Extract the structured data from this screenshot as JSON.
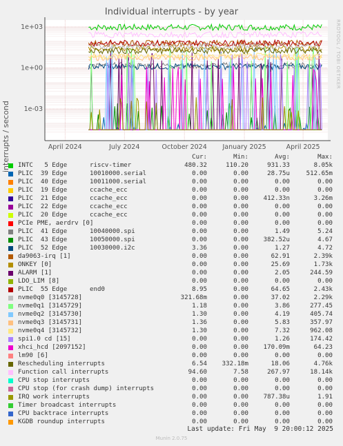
{
  "chart_data": {
    "type": "line",
    "title": "Individual interrupts - by year",
    "ylabel": "interrupts / second",
    "yscale": "log",
    "ylim": [
      3e-05,
      3000
    ],
    "yticks": [
      {
        "value": 1000,
        "label": "1e+03"
      },
      {
        "value": 1,
        "label": "1e+00"
      },
      {
        "value": 0.001,
        "label": "1e-03"
      }
    ],
    "xlim": [
      "2024-03-01",
      "2025-05-09"
    ],
    "xticks": [
      {
        "value": "2024-04-01",
        "label": "April 2024"
      },
      {
        "value": "2024-07-01",
        "label": "July 2024"
      },
      {
        "value": "2024-10-01",
        "label": "October 2024"
      },
      {
        "value": "2025-01-01",
        "label": "January 2025"
      },
      {
        "value": "2025-04-01",
        "label": "April 2025"
      }
    ],
    "grid": true,
    "legend_columns": [
      "Cur:",
      "Min:",
      "Avg:",
      "Max:"
    ],
    "series": [
      {
        "name": "INTC   5 Edge      riscv-timer",
        "color": "#00cc00",
        "cur": "480.32",
        "min": "110.20",
        "avg": "931.33",
        "max": "8.05k"
      },
      {
        "name": "PLIC  39 Edge      10010000.serial",
        "color": "#0066b3",
        "cur": "0.00",
        "min": "0.00",
        "avg": "28.75u",
        "max": "512.65m"
      },
      {
        "name": "PLIC  40 Edge      10011000.serial",
        "color": "#ff8000",
        "cur": "0.00",
        "min": "0.00",
        "avg": "0.00",
        "max": "0.00"
      },
      {
        "name": "PLIC  19 Edge      ccache_ecc",
        "color": "#ffcc00",
        "cur": "0.00",
        "min": "0.00",
        "avg": "0.00",
        "max": "0.00"
      },
      {
        "name": "PLIC  21 Edge      ccache_ecc",
        "color": "#330099",
        "cur": "0.00",
        "min": "0.00",
        "avg": "412.33n",
        "max": "3.26m"
      },
      {
        "name": "PLIC  22 Edge      ccache_ecc",
        "color": "#990099",
        "cur": "0.00",
        "min": "0.00",
        "avg": "0.00",
        "max": "0.00"
      },
      {
        "name": "PLIC  20 Edge      ccache_ecc",
        "color": "#ccff00",
        "cur": "0.00",
        "min": "0.00",
        "avg": "0.00",
        "max": "0.00"
      },
      {
        "name": "PCIe PME, aerdrv [0]",
        "color": "#ff0000",
        "cur": "0.00",
        "min": "0.00",
        "avg": "0.00",
        "max": "0.00"
      },
      {
        "name": "PLIC  41 Edge      10040000.spi",
        "color": "#808080",
        "cur": "0.00",
        "min": "0.00",
        "avg": "1.49",
        "max": "5.24"
      },
      {
        "name": "PLIC  43 Edge      10050000.spi",
        "color": "#008f00",
        "cur": "0.00",
        "min": "0.00",
        "avg": "382.52u",
        "max": "4.67"
      },
      {
        "name": "PLIC  52 Edge      10030000.i2c",
        "color": "#00487d",
        "cur": "3.36",
        "min": "0.00",
        "avg": "1.27",
        "max": "4.72"
      },
      {
        "name": "da9063-irq [1]",
        "color": "#b35a00",
        "cur": "0.00",
        "min": "0.00",
        "avg": "62.91",
        "max": "2.39k"
      },
      {
        "name": "ONKEY [0]",
        "color": "#b38f00",
        "cur": "0.00",
        "min": "0.00",
        "avg": "25.69",
        "max": "1.73k"
      },
      {
        "name": "ALARM [1]",
        "color": "#6b006b",
        "cur": "0.00",
        "min": "0.00",
        "avg": "2.05",
        "max": "244.59"
      },
      {
        "name": "LDO_LIM [8]",
        "color": "#8fb300",
        "cur": "0.00",
        "min": "0.00",
        "avg": "0.00",
        "max": "0.00"
      },
      {
        "name": "PLIC  55 Edge      end0",
        "color": "#b30000",
        "cur": "8.95",
        "min": "0.00",
        "avg": "64.65",
        "max": "2.43k"
      },
      {
        "name": "nvme0q0 [3145728]",
        "color": "#bebebe",
        "cur": "321.68m",
        "min": "0.00",
        "avg": "37.02",
        "max": "2.29k"
      },
      {
        "name": "nvme0q1 [3145729]",
        "color": "#80ff80",
        "cur": "1.18",
        "min": "0.00",
        "avg": "3.86",
        "max": "277.45"
      },
      {
        "name": "nvme0q2 [3145730]",
        "color": "#80c9ff",
        "cur": "1.30",
        "min": "0.00",
        "avg": "4.19",
        "max": "405.74"
      },
      {
        "name": "nvme0q3 [3145731]",
        "color": "#ffc080",
        "cur": "1.36",
        "min": "0.00",
        "avg": "5.83",
        "max": "357.97"
      },
      {
        "name": "nvme0q4 [3145732]",
        "color": "#ffe680",
        "cur": "1.30",
        "min": "0.00",
        "avg": "7.32",
        "max": "962.08"
      },
      {
        "name": "spi1.0 cd [15]",
        "color": "#aa80ff",
        "cur": "0.00",
        "min": "0.00",
        "avg": "1.26",
        "max": "174.42"
      },
      {
        "name": "xhci_hcd [2097152]",
        "color": "#ee00cc",
        "cur": "0.00",
        "min": "0.00",
        "avg": "170.09m",
        "max": "64.23"
      },
      {
        "name": "lm90 [6]",
        "color": "#ff8080",
        "cur": "0.00",
        "min": "0.00",
        "avg": "0.00",
        "max": "0.00"
      },
      {
        "name": "Rescheduling interrupts",
        "color": "#666600",
        "cur": "6.54",
        "min": "332.18m",
        "avg": "18.06",
        "max": "4.76k"
      },
      {
        "name": "Function call interrupts",
        "color": "#ffbfff",
        "cur": "94.60",
        "min": "7.58",
        "avg": "267.97",
        "max": "18.14k"
      },
      {
        "name": "CPU stop interrupts",
        "color": "#00ffcc",
        "cur": "0.00",
        "min": "0.00",
        "avg": "0.00",
        "max": "0.00"
      },
      {
        "name": "CPU stop (for crash dump) interrupts",
        "color": "#cc6699",
        "cur": "0.00",
        "min": "0.00",
        "avg": "0.00",
        "max": "0.00"
      },
      {
        "name": "IRQ work interrupts",
        "color": "#999900",
        "cur": "0.00",
        "min": "0.00",
        "avg": "787.38u",
        "max": "1.91"
      },
      {
        "name": "Timer broadcast interrupts",
        "color": "#33cc33",
        "cur": "0.00",
        "min": "0.00",
        "avg": "0.00",
        "max": "0.00"
      },
      {
        "name": "CPU backtrace interrupts",
        "color": "#3366cc",
        "cur": "0.00",
        "min": "0.00",
        "avg": "0.00",
        "max": "0.00"
      },
      {
        "name": "KGDB roundup interrupts",
        "color": "#ff9900",
        "cur": "0.00",
        "min": "0.00",
        "avg": "0.00",
        "max": "0.00"
      }
    ]
  },
  "watermark": "RRDTOOL / TOBI OETIKER",
  "footer": "Last update: Fri May  9 20:00:12 2025",
  "munin_version": "Munin 2.0.75"
}
